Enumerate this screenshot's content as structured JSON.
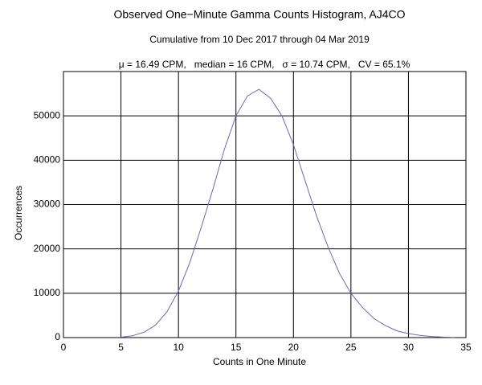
{
  "chart_data": {
    "type": "line",
    "title": "Observed One−Minute Gamma Counts Histogram, AJ4CO",
    "subtitle": "Cumulative from 10 Dec 2017 through 04 Mar 2019",
    "stats": "μ = 16.49 CPM,   median = 16 CPM,   σ = 10.74 CPM,   CV = 65.1%",
    "x_label": "Counts in One Minute",
    "y_label": "Occurrences",
    "x": [
      5,
      6,
      7,
      8,
      9,
      10,
      11,
      12,
      13,
      14,
      15,
      16,
      17,
      18,
      19,
      20,
      21,
      22,
      23,
      24,
      25,
      26,
      27,
      28,
      29,
      30,
      31,
      32,
      33,
      34
    ],
    "series": [
      {
        "name": "Occurrences",
        "color": "#6a6ab8",
        "values": [
          100,
          400,
          1200,
          2800,
          5800,
          10500,
          17000,
          25000,
          33500,
          42500,
          50000,
          54500,
          56000,
          54000,
          50000,
          43500,
          35500,
          27500,
          20500,
          14500,
          10000,
          6800,
          4300,
          2700,
          1500,
          900,
          500,
          250,
          120,
          50
        ]
      }
    ],
    "xlim": [
      0,
      35
    ],
    "xticks": [
      0,
      5,
      10,
      15,
      20,
      25,
      30,
      35
    ],
    "ylim": [
      0,
      60000
    ],
    "yticks": [
      0,
      10000,
      20000,
      30000,
      40000,
      50000
    ],
    "grid": true
  }
}
